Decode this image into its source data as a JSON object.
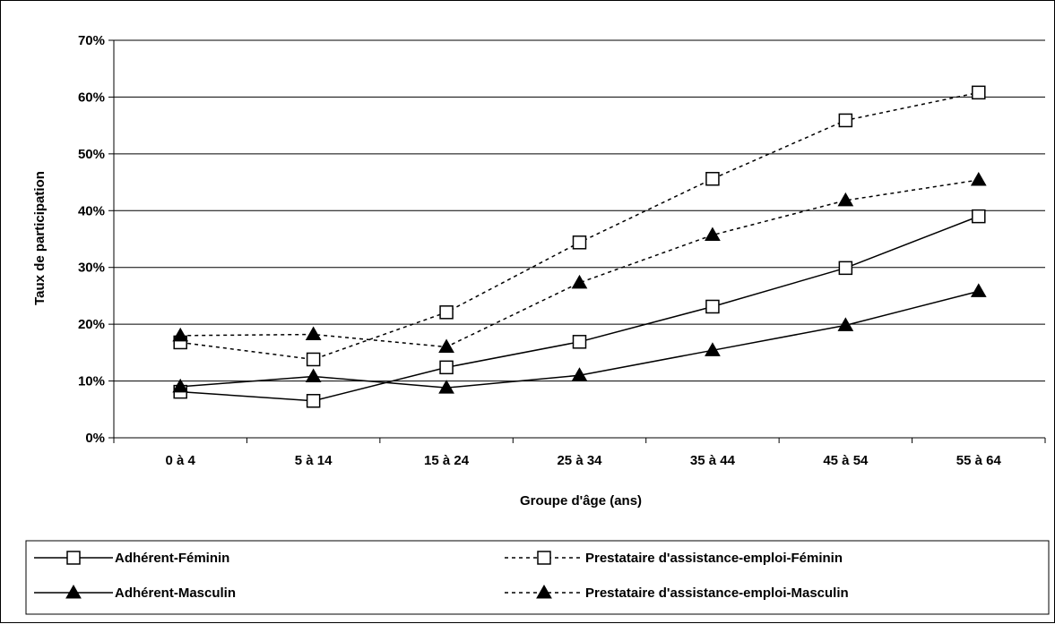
{
  "chart_data": {
    "type": "line",
    "title": "",
    "xlabel": "Groupe d'âge (ans)",
    "ylabel": "Taux de participation",
    "categories": [
      "0 à 4",
      "5 à 14",
      "15 à 24",
      "25 à 34",
      "35 à 44",
      "45 à 54",
      "55 à 64"
    ],
    "ylim": [
      0,
      70
    ],
    "yticks": [
      0,
      10,
      20,
      30,
      40,
      50,
      60,
      70
    ],
    "ytick_labels": [
      "0%",
      "10%",
      "20%",
      "30%",
      "40%",
      "50%",
      "60%",
      "70%"
    ],
    "grid": true,
    "legend_position": "bottom",
    "series": [
      {
        "name": "Adhérent-Féminin",
        "values": [
          8.1,
          6.5,
          12.4,
          16.9,
          23.1,
          29.9,
          39.0
        ],
        "marker": "square",
        "line": "solid"
      },
      {
        "name": "Prestataire d'assistance-emploi-Féminin",
        "values": [
          16.8,
          13.8,
          22.1,
          34.4,
          45.6,
          55.9,
          60.8
        ],
        "marker": "square",
        "line": "dashed"
      },
      {
        "name": "Adhérent-Masculin",
        "values": [
          9.0,
          10.8,
          8.8,
          11.0,
          15.4,
          19.8,
          25.8
        ],
        "marker": "triangle",
        "line": "solid"
      },
      {
        "name": "Prestataire d'assistance-emploi-Masculin",
        "values": [
          18.0,
          18.2,
          16.0,
          27.3,
          35.7,
          41.8,
          45.4
        ],
        "marker": "triangle",
        "line": "dashed"
      }
    ]
  }
}
